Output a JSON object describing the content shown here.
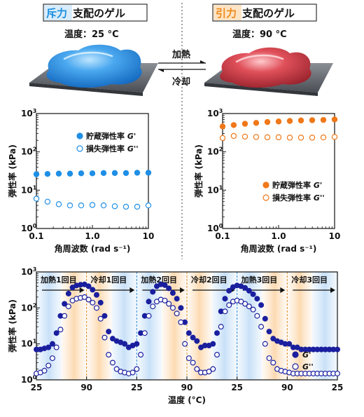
{
  "left_panel": {
    "title_highlight": "斥力",
    "title_rest": "支配のゲル",
    "temperature": "温度：25 °C",
    "highlight_color": "#1d8fe0",
    "gel_color": "#2b8fe6"
  },
  "right_panel": {
    "title_highlight": "引力",
    "title_rest": "支配のゲル",
    "temperature": "温度：90 °C",
    "highlight_color": "#f08a1c",
    "gel_color": "#d83a45"
  },
  "transition": {
    "heat_label": "加熱",
    "cool_label": "冷却"
  },
  "chart_data": [
    {
      "type": "scatter",
      "panel": "left",
      "xscale": "log",
      "yscale": "log",
      "xlim": [
        0.1,
        10
      ],
      "ylim": [
        1,
        1000
      ],
      "xticks": [
        "0.1",
        "1.0",
        "10"
      ],
      "yticks_exp": [
        "0",
        "1",
        "2",
        "3"
      ],
      "xlabel": "角周波数 (rad s⁻¹)",
      "ylabel": "弾性率 (kPa)",
      "legend_position": "top-right",
      "color": "#1f8fe6",
      "series": [
        {
          "name": "貯蔵弾性率 G'",
          "name_main": "貯蔵弾性率 ",
          "name_sym": "G'",
          "marker": "filled",
          "x": [
            0.1,
            0.158,
            0.251,
            0.398,
            0.631,
            1.0,
            1.585,
            2.512,
            3.981,
            6.31,
            10
          ],
          "y": [
            26,
            26.5,
            27,
            27,
            27.5,
            27.5,
            28,
            28,
            28,
            28.5,
            28.5
          ]
        },
        {
          "name": "損失弾性率 G''",
          "name_main": "損失弾性率 ",
          "name_sym": "G''",
          "marker": "open",
          "x": [
            0.1,
            0.158,
            0.251,
            0.398,
            0.631,
            1.0,
            1.585,
            2.512,
            3.981,
            6.31,
            10
          ],
          "y": [
            6.0,
            5.0,
            4.3,
            4.0,
            4.0,
            4.1,
            4.0,
            3.8,
            3.7,
            3.7,
            4.0
          ]
        }
      ]
    },
    {
      "type": "scatter",
      "panel": "right",
      "xscale": "log",
      "yscale": "log",
      "xlim": [
        0.1,
        10
      ],
      "ylim": [
        1,
        1000
      ],
      "xticks": [
        "0.1",
        "1.0",
        "10"
      ],
      "yticks_exp": [
        "0",
        "1",
        "2",
        "3"
      ],
      "xlabel": "角周波数 (rad s⁻¹)",
      "ylabel": "弾性率 (kPa)",
      "legend_position": "bottom-right",
      "color": "#f07818",
      "series": [
        {
          "name": "貯蔵弾性率 G'",
          "name_main": "貯蔵弾性率 ",
          "name_sym": "G'",
          "marker": "filled",
          "x": [
            0.1,
            0.158,
            0.251,
            0.398,
            0.631,
            1.0,
            1.585,
            2.512,
            3.981,
            6.31,
            10
          ],
          "y": [
            460,
            500,
            540,
            570,
            600,
            620,
            640,
            660,
            670,
            680,
            700
          ]
        },
        {
          "name": "損失弾性率 G''",
          "name_main": "損失弾性率 ",
          "name_sym": "G''",
          "marker": "open",
          "x": [
            0.1,
            0.158,
            0.251,
            0.398,
            0.631,
            1.0,
            1.585,
            2.512,
            3.981,
            6.31,
            10
          ],
          "y": [
            230,
            260,
            250,
            245,
            240,
            240,
            235,
            235,
            235,
            238,
            245
          ]
        }
      ]
    },
    {
      "type": "scatter",
      "panel": "bottom",
      "yscale": "log",
      "ylim": [
        1,
        1000
      ],
      "xticks": [
        "25",
        "90",
        "25",
        "90",
        "25",
        "90",
        "25"
      ],
      "yticks_exp": [
        "0",
        "1",
        "2",
        "3"
      ],
      "xlabel": "温度 (°C)",
      "ylabel": "弾性率 (kPa)",
      "legend_position": "bottom-right",
      "color": "#1a1f9e",
      "segments": [
        "加熱1回目",
        "冷却1回目",
        "加熱2回目",
        "冷却2回目",
        "加熱3回目",
        "冷却3回目"
      ],
      "series": [
        {
          "name": "G'",
          "marker": "filled",
          "x": [
            0,
            0.08,
            0.16,
            0.24,
            0.32,
            0.4,
            0.48,
            0.56,
            0.64,
            0.72,
            0.8,
            0.88,
            0.96,
            1.04,
            1.12,
            1.2,
            1.28,
            1.36,
            1.44,
            1.52,
            1.6,
            1.68,
            1.76,
            1.84,
            1.92,
            2.0,
            2.08,
            2.16,
            2.24,
            2.32,
            2.4,
            2.48,
            2.56,
            2.64,
            2.72,
            2.8,
            2.88,
            2.96,
            3.04,
            3.12,
            3.2,
            3.28,
            3.36,
            3.44,
            3.52,
            3.6,
            3.68,
            3.76,
            3.84,
            3.92,
            4.0,
            4.08,
            4.16,
            4.24,
            4.32,
            4.4,
            4.48,
            4.56,
            4.64,
            4.72,
            4.8,
            4.88,
            4.96,
            5.04,
            5.12,
            5.2,
            5.28,
            5.36,
            5.44,
            5.52,
            5.6,
            5.68,
            5.76,
            5.84,
            5.92,
            6.0
          ],
          "y": [
            7,
            7,
            7.5,
            8,
            10,
            20,
            60,
            130,
            250,
            370,
            420,
            440,
            450,
            400,
            320,
            230,
            140,
            60,
            22,
            14,
            12,
            11,
            10,
            8,
            9,
            10,
            20,
            60,
            150,
            280,
            400,
            450,
            430,
            350,
            260,
            180,
            100,
            40,
            20,
            15,
            12,
            8,
            9,
            9,
            10,
            20,
            80,
            180,
            300,
            380,
            420,
            400,
            360,
            300,
            240,
            180,
            120,
            50,
            22,
            14,
            12,
            11,
            10,
            10,
            8,
            8,
            7,
            7,
            7,
            7,
            7,
            7,
            7,
            7,
            7,
            7
          ]
        },
        {
          "name": "G''",
          "marker": "open",
          "x": [
            0,
            0.08,
            0.16,
            0.24,
            0.32,
            0.4,
            0.48,
            0.56,
            0.64,
            0.72,
            0.8,
            0.88,
            0.96,
            1.04,
            1.12,
            1.2,
            1.28,
            1.36,
            1.44,
            1.52,
            1.6,
            1.68,
            1.76,
            1.84,
            1.92,
            2.0,
            2.08,
            2.16,
            2.24,
            2.32,
            2.4,
            2.48,
            2.56,
            2.64,
            2.72,
            2.8,
            2.88,
            2.96,
            3.04,
            3.12,
            3.2,
            3.28,
            3.36,
            3.44,
            3.52,
            3.6,
            3.68,
            3.76,
            3.84,
            3.92,
            4.0,
            4.08,
            4.16,
            4.24,
            4.32,
            4.4,
            4.48,
            4.56,
            4.64,
            4.72,
            4.8,
            4.88,
            4.96,
            5.04,
            5.12,
            5.2,
            5.28,
            5.36,
            5.44,
            5.52,
            5.6,
            5.68,
            5.76,
            5.84,
            5.92,
            6.0
          ],
          "y": [
            1.5,
            1.6,
            1.8,
            2.5,
            4,
            8,
            25,
            60,
            110,
            160,
            180,
            190,
            200,
            170,
            140,
            100,
            50,
            15,
            5,
            3,
            2,
            1.7,
            1.6,
            1.5,
            1.6,
            2,
            5,
            20,
            60,
            110,
            150,
            170,
            160,
            130,
            100,
            70,
            40,
            10,
            4,
            3,
            2,
            1.6,
            1.6,
            1.7,
            2,
            5,
            30,
            80,
            120,
            150,
            160,
            150,
            130,
            110,
            90,
            60,
            30,
            10,
            4,
            3,
            2,
            1.8,
            1.7,
            1.6,
            1.5,
            1.5,
            1.5,
            1.5,
            1.5,
            1.5,
            1.5,
            1.5,
            1.5,
            1.5,
            1.5,
            1.5
          ]
        }
      ]
    }
  ]
}
